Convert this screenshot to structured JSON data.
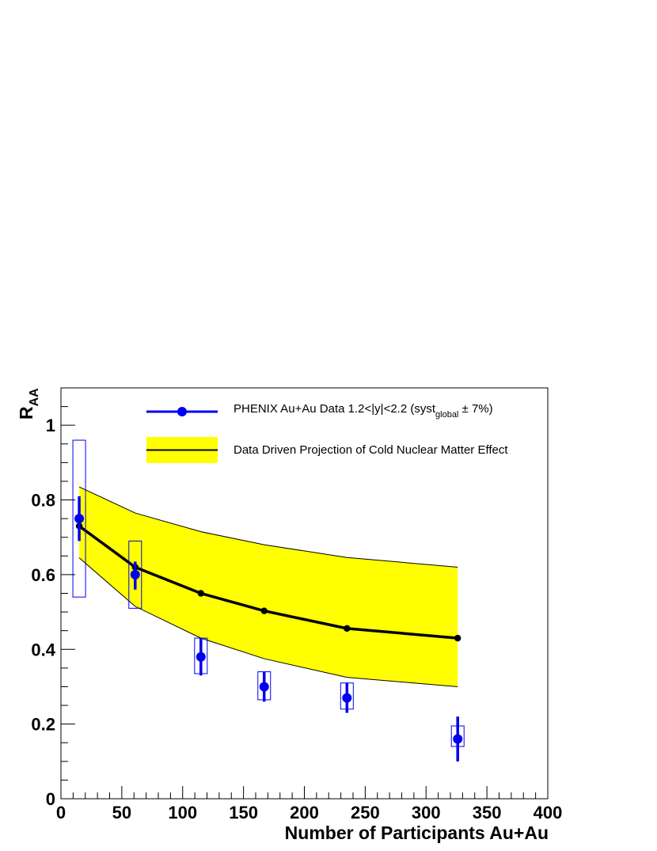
{
  "chart_data": {
    "type": "scatter",
    "xlabel": "Number of Participants Au+Au",
    "ylabel_main": "R",
    "ylabel_sub": "AA",
    "xlim": [
      0,
      400
    ],
    "ylim": [
      0,
      1.1
    ],
    "x_ticks": [
      {
        "value": 0,
        "label": "0"
      },
      {
        "value": 50,
        "label": "50"
      },
      {
        "value": 100,
        "label": "100"
      },
      {
        "value": 150,
        "label": "150"
      },
      {
        "value": 200,
        "label": "200"
      },
      {
        "value": 250,
        "label": "250"
      },
      {
        "value": 300,
        "label": "300"
      },
      {
        "value": 350,
        "label": "350"
      },
      {
        "value": 400,
        "label": "400"
      }
    ],
    "y_ticks": [
      {
        "value": 0,
        "label": "0"
      },
      {
        "value": 0.2,
        "label": "0.2"
      },
      {
        "value": 0.4,
        "label": "0.4"
      },
      {
        "value": 0.6,
        "label": "0.6"
      },
      {
        "value": 0.8,
        "label": "0.8"
      },
      {
        "value": 1,
        "label": "1"
      }
    ],
    "grid": false,
    "legend_position": "top",
    "colors": {
      "data": "#0000ee",
      "band": "#ffff00",
      "projection": "#000000"
    },
    "series": [
      {
        "name": "PHENIX Au+Au Data 1.2<|y|<2.2 (syst global ± 7%)",
        "legend_main": "PHENIX Au+Au Data 1.2<|y|<2.2 (syst",
        "legend_sub": "global",
        "legend_tail": " ± 7%)",
        "points": [
          {
            "x": 15,
            "y": 0.75,
            "stat_lo": 0.69,
            "stat_hi": 0.81,
            "sys_lo": 0.54,
            "sys_hi": 0.96
          },
          {
            "x": 61,
            "y": 0.6,
            "stat_lo": 0.56,
            "stat_hi": 0.635,
            "sys_lo": 0.51,
            "sys_hi": 0.69
          },
          {
            "x": 115,
            "y": 0.38,
            "stat_lo": 0.33,
            "stat_hi": 0.43,
            "sys_lo": 0.335,
            "sys_hi": 0.43
          },
          {
            "x": 167,
            "y": 0.3,
            "stat_lo": 0.26,
            "stat_hi": 0.34,
            "sys_lo": 0.265,
            "sys_hi": 0.34
          },
          {
            "x": 235,
            "y": 0.27,
            "stat_lo": 0.23,
            "stat_hi": 0.31,
            "sys_lo": 0.24,
            "sys_hi": 0.31
          },
          {
            "x": 326,
            "y": 0.16,
            "stat_lo": 0.1,
            "stat_hi": 0.22,
            "sys_lo": 0.14,
            "sys_hi": 0.195
          }
        ]
      },
      {
        "name": "Data Driven Projection of Cold Nuclear Matter Effect",
        "points": [
          {
            "x": 15,
            "y": 0.73,
            "lo": 0.645,
            "hi": 0.835
          },
          {
            "x": 61,
            "y": 0.62,
            "lo": 0.515,
            "hi": 0.765
          },
          {
            "x": 115,
            "y": 0.55,
            "lo": 0.43,
            "hi": 0.715
          },
          {
            "x": 167,
            "y": 0.503,
            "lo": 0.375,
            "hi": 0.68
          },
          {
            "x": 235,
            "y": 0.456,
            "lo": 0.325,
            "hi": 0.646
          },
          {
            "x": 326,
            "y": 0.43,
            "lo": 0.3,
            "hi": 0.62
          }
        ]
      }
    ]
  }
}
